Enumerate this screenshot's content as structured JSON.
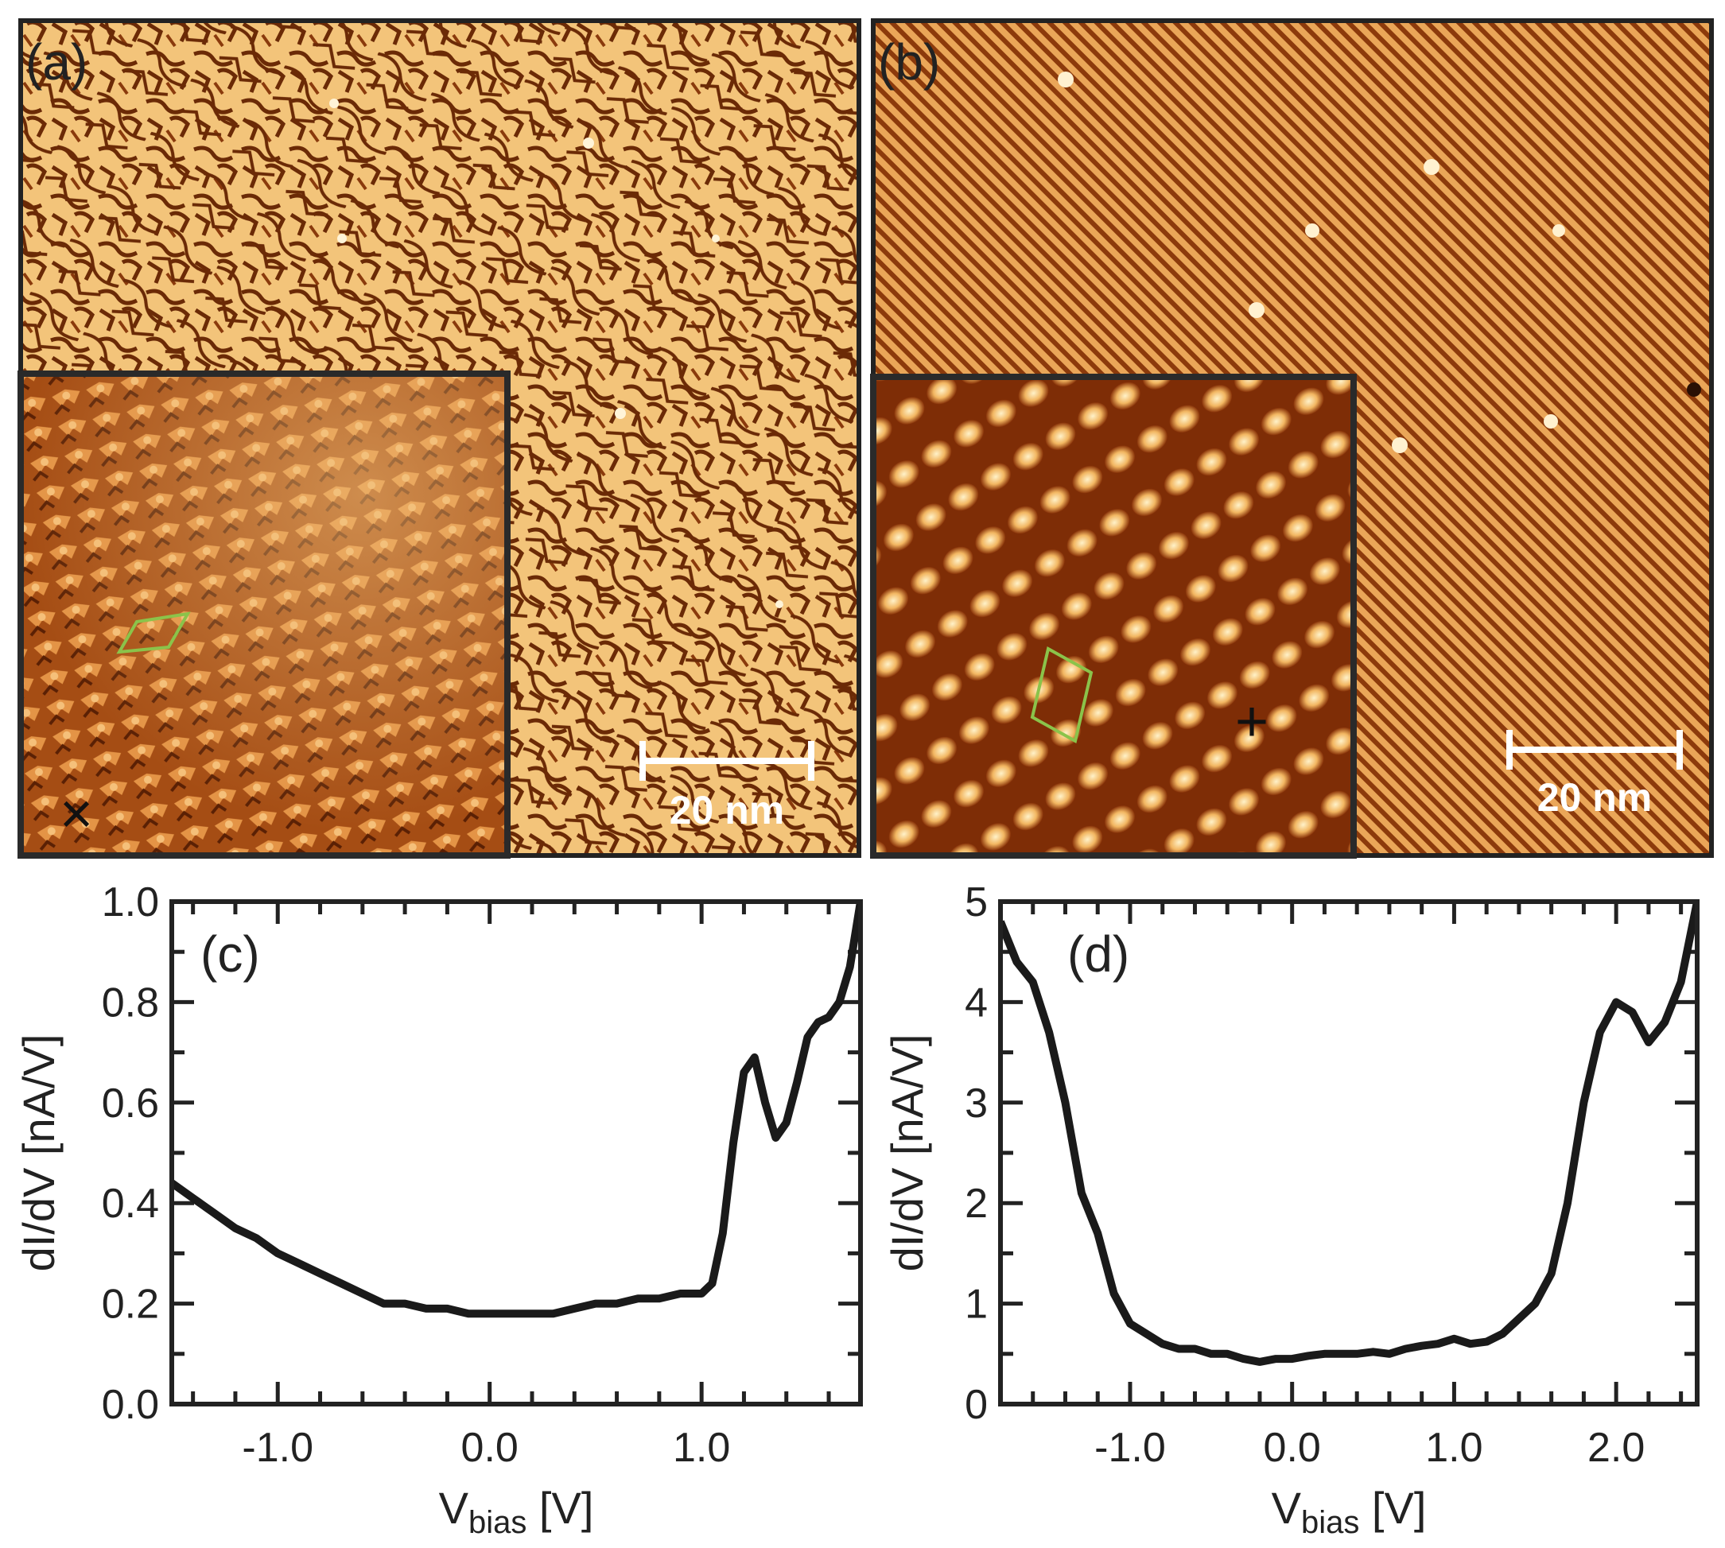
{
  "panels": {
    "a": {
      "label": "(a)",
      "scale_bar": "20 nm",
      "marker": "×",
      "inset_colors": [
        "#7a2e07",
        "#f7cf8a"
      ]
    },
    "b": {
      "label": "(b)",
      "scale_bar": "20 nm",
      "marker": "+"
    }
  },
  "colors": {
    "stm_dark": "#6b2a06",
    "stm_mid": "#c36a1f",
    "stm_light": "#f6d391",
    "unit_cell": "#8bc34a",
    "curve": "#1a1a1a"
  },
  "chart_data": [
    {
      "type": "line",
      "panel_label": "(c)",
      "xlabel": "V",
      "xlabel_sub": "bias",
      "xlabel_unit": " [V]",
      "ylabel": "dI/dV [nA/V]",
      "xlim": [
        -1.5,
        1.75
      ],
      "ylim": [
        0.0,
        1.0
      ],
      "xticks": [
        -1.0,
        0.0,
        1.0
      ],
      "xtick_labels": [
        "-1.0",
        "0.0",
        "1.0"
      ],
      "yticks": [
        0.0,
        0.2,
        0.4,
        0.6,
        0.8,
        1.0
      ],
      "ytick_labels": [
        "0.0",
        "0.2",
        "0.4",
        "0.6",
        "0.8",
        "1.0"
      ],
      "x": [
        -1.5,
        -1.4,
        -1.3,
        -1.2,
        -1.1,
        -1.0,
        -0.9,
        -0.8,
        -0.7,
        -0.6,
        -0.5,
        -0.4,
        -0.3,
        -0.2,
        -0.1,
        0.0,
        0.1,
        0.2,
        0.3,
        0.4,
        0.5,
        0.6,
        0.7,
        0.8,
        0.9,
        1.0,
        1.05,
        1.1,
        1.15,
        1.2,
        1.25,
        1.3,
        1.35,
        1.4,
        1.45,
        1.5,
        1.55,
        1.6,
        1.65,
        1.7,
        1.75
      ],
      "y": [
        0.44,
        0.41,
        0.38,
        0.35,
        0.33,
        0.3,
        0.28,
        0.26,
        0.24,
        0.22,
        0.2,
        0.2,
        0.19,
        0.19,
        0.18,
        0.18,
        0.18,
        0.18,
        0.18,
        0.19,
        0.2,
        0.2,
        0.21,
        0.21,
        0.22,
        0.22,
        0.24,
        0.34,
        0.52,
        0.66,
        0.69,
        0.6,
        0.53,
        0.56,
        0.64,
        0.73,
        0.76,
        0.77,
        0.8,
        0.87,
        1.0
      ]
    },
    {
      "type": "line",
      "panel_label": "(d)",
      "xlabel": "V",
      "xlabel_sub": "bias",
      "xlabel_unit": " [V]",
      "ylabel": "dI/dV [nA/V]",
      "xlim": [
        -1.8,
        2.5
      ],
      "ylim": [
        0,
        5
      ],
      "xticks": [
        -1.0,
        0.0,
        1.0,
        2.0
      ],
      "xtick_labels": [
        "-1.0",
        "0.0",
        "1.0",
        "2.0"
      ],
      "yticks": [
        0,
        1,
        2,
        3,
        4,
        5
      ],
      "ytick_labels": [
        "0",
        "1",
        "2",
        "3",
        "4",
        "5"
      ],
      "x": [
        -1.8,
        -1.7,
        -1.6,
        -1.5,
        -1.4,
        -1.3,
        -1.2,
        -1.1,
        -1.0,
        -0.9,
        -0.8,
        -0.7,
        -0.6,
        -0.5,
        -0.4,
        -0.3,
        -0.2,
        -0.1,
        0.0,
        0.1,
        0.2,
        0.3,
        0.4,
        0.5,
        0.6,
        0.7,
        0.8,
        0.9,
        1.0,
        1.1,
        1.2,
        1.3,
        1.4,
        1.5,
        1.6,
        1.7,
        1.8,
        1.9,
        2.0,
        2.1,
        2.2,
        2.3,
        2.4,
        2.5
      ],
      "y": [
        4.8,
        4.4,
        4.2,
        3.7,
        3.0,
        2.1,
        1.7,
        1.1,
        0.8,
        0.7,
        0.6,
        0.55,
        0.55,
        0.5,
        0.5,
        0.45,
        0.42,
        0.45,
        0.45,
        0.48,
        0.5,
        0.5,
        0.5,
        0.52,
        0.5,
        0.55,
        0.58,
        0.6,
        0.65,
        0.6,
        0.62,
        0.7,
        0.85,
        1.0,
        1.3,
        2.0,
        3.0,
        3.7,
        4.0,
        3.9,
        3.6,
        3.8,
        4.2,
        5.0
      ]
    }
  ]
}
